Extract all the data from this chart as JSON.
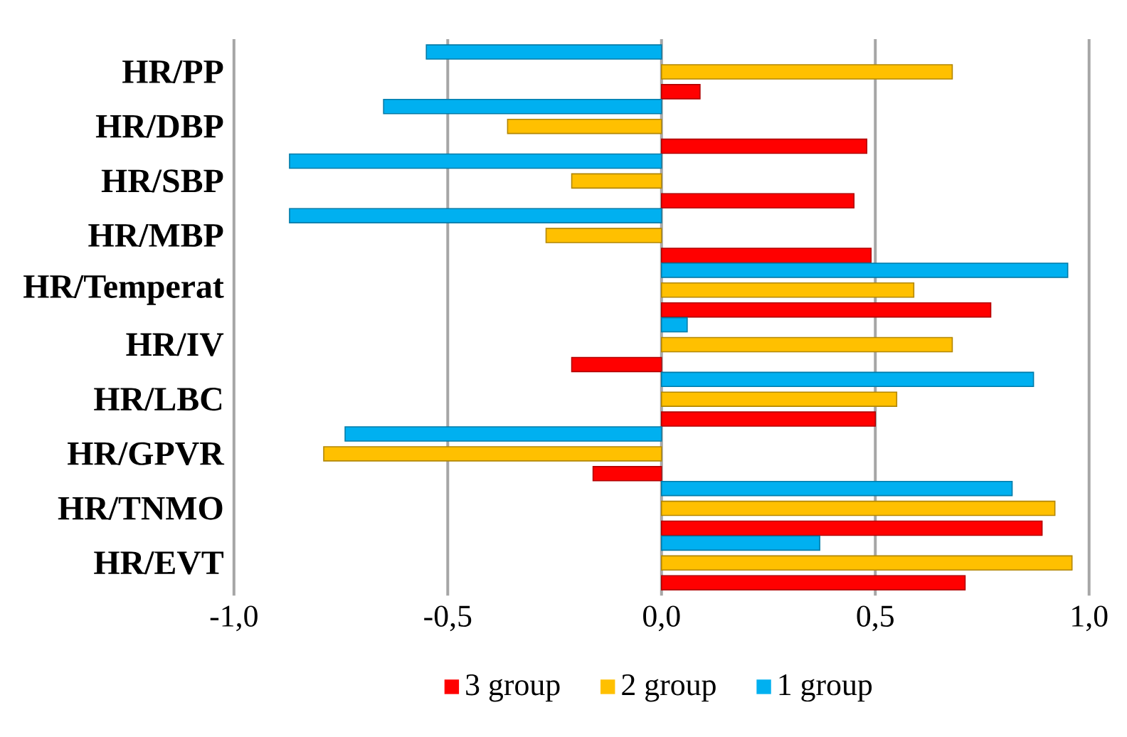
{
  "chart_data": {
    "type": "bar",
    "orientation": "horizontal",
    "categories": [
      "HR/PP",
      "HR/DBP",
      "HR/SBP",
      "HR/MBP",
      "HR/Temperat",
      "HR/IV",
      "HR/LBC",
      "HR/GPVR",
      "HR/TNMO",
      "HR/EVT"
    ],
    "series": [
      {
        "name": "3 group",
        "color": "#ff0000",
        "values": [
          0.09,
          0.48,
          0.45,
          0.49,
          0.77,
          -0.21,
          0.5,
          -0.16,
          0.89,
          0.71
        ]
      },
      {
        "name": "2 group",
        "color": "#ffc000",
        "values": [
          0.68,
          -0.36,
          -0.21,
          -0.27,
          0.59,
          0.68,
          0.55,
          -0.79,
          0.92,
          0.96
        ]
      },
      {
        "name": "1 group",
        "color": "#00b0f0",
        "values": [
          -0.55,
          -0.65,
          -0.87,
          -0.87,
          0.95,
          0.06,
          0.87,
          -0.74,
          0.82,
          0.37
        ]
      }
    ],
    "xlim": [
      -1,
      1
    ],
    "xticks": [
      {
        "value": -1,
        "label": "-1,0"
      },
      {
        "value": -0.5,
        "label": "-0,5"
      },
      {
        "value": 0,
        "label": "0,0"
      },
      {
        "value": 0.5,
        "label": "0,5"
      },
      {
        "value": 1,
        "label": "1,0"
      }
    ],
    "grid": "x",
    "legend": "bottom"
  }
}
